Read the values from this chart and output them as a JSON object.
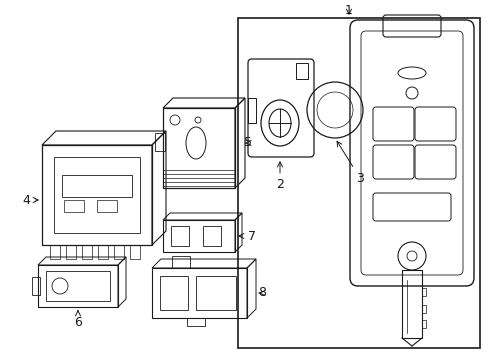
{
  "bg_color": "#ffffff",
  "line_color": "#1a1a1a",
  "font_size": 9,
  "fig_w": 4.89,
  "fig_h": 3.6,
  "dpi": 100
}
